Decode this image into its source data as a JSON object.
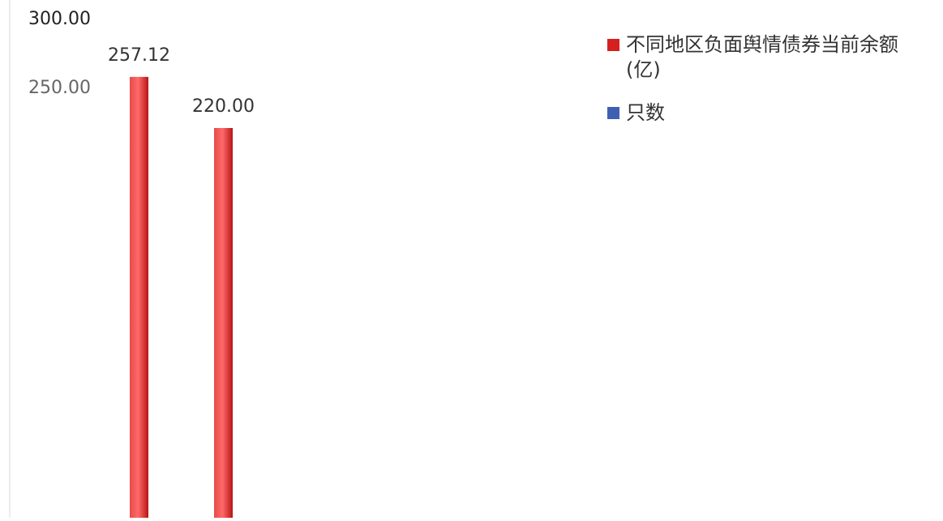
{
  "chart_data": {
    "type": "bar",
    "y_ticks": [
      "300.00",
      "250.00"
    ],
    "ylim": [
      250,
      300
    ],
    "series": [
      {
        "name": "不同地区负面舆情债券当前余额(亿)",
        "color": "#d61f1f",
        "values": [
          257.12,
          220.0
        ],
        "value_labels": [
          "257.12",
          "220.00"
        ]
      },
      {
        "name": "只数",
        "color": "#3f5fb3",
        "values": []
      }
    ],
    "grid": false,
    "legend_position": "top-right",
    "unreadable_region": "lower part of chart obscured; remaining categories and values not legible"
  }
}
